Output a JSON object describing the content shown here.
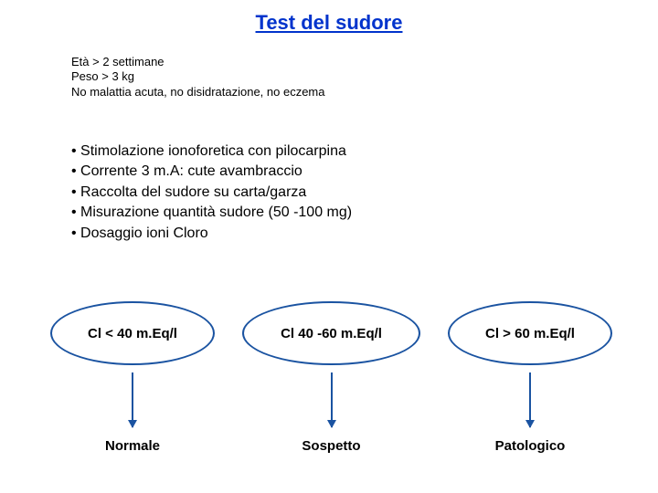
{
  "title": "Test del sudore",
  "criteria": {
    "line1": "Età > 2 settimane",
    "line2": "Peso > 3 kg",
    "line3": "No malattia acuta, no disidratazione, no eczema"
  },
  "bullets": {
    "b1": "• Stimolazione ionoforetica con pilocarpina",
    "b2": "• Corrente 3 m.A: cute avambraccio",
    "b3": "• Raccolta del sudore su carta/garza",
    "b4": "• Misurazione quantità sudore (50 -100 mg)",
    "b5": "• Dosaggio ioni Cloro"
  },
  "results": {
    "range1": "Cl < 40 m.Eq/l",
    "range2": "Cl 40 -60 m.Eq/l",
    "range3": "Cl > 60 m.Eq/l",
    "label1": "Normale",
    "label2": "Sospetto",
    "label3": "Patologico"
  },
  "colors": {
    "title": "#0033cc",
    "ellipse_border": "#1a53a1",
    "arrow": "#1a53a1",
    "text": "#000000",
    "background": "#ffffff"
  }
}
